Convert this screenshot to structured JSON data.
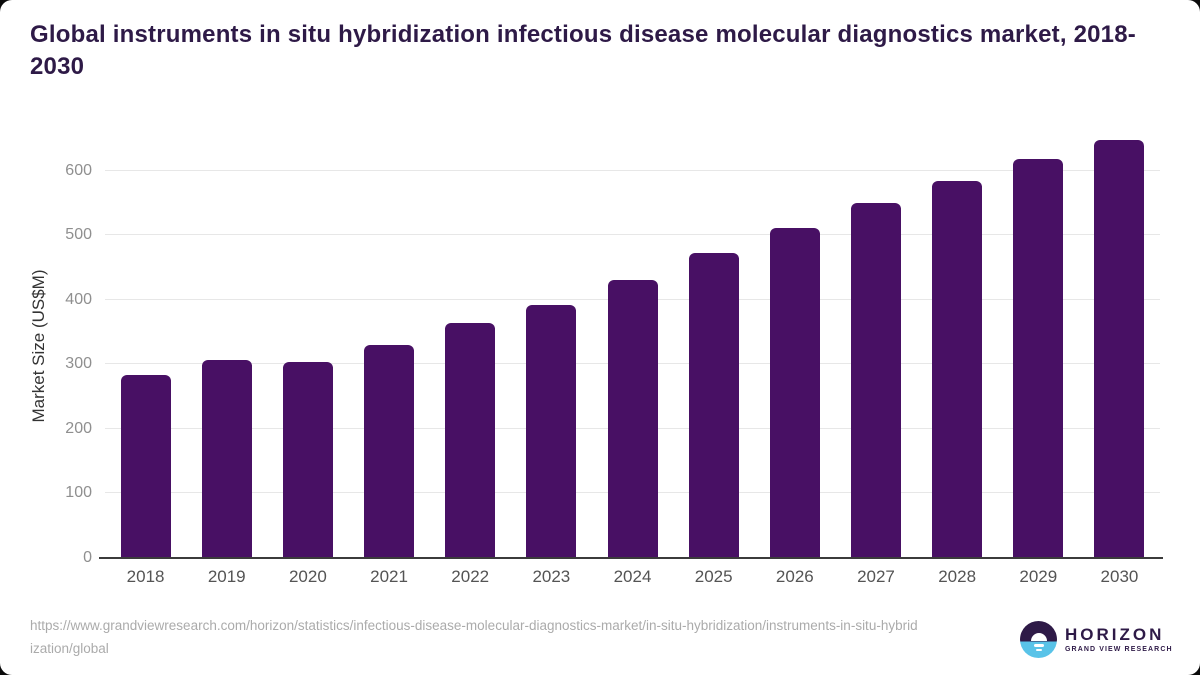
{
  "chart_data": {
    "type": "bar",
    "title": "Global instruments in situ hybridization infectious disease molecular diagnostics market, 2018-2030",
    "categories": [
      "2018",
      "2019",
      "2020",
      "2021",
      "2022",
      "2023",
      "2024",
      "2025",
      "2026",
      "2027",
      "2028",
      "2029",
      "2030"
    ],
    "values": [
      283,
      307,
      304,
      330,
      364,
      392,
      430,
      472,
      511,
      549,
      584,
      618,
      648
    ],
    "xlabel": "",
    "ylabel": "Market Size (US$M)",
    "yticks": [
      0,
      100,
      200,
      300,
      400,
      500,
      600
    ],
    "ylim": [
      0,
      655
    ],
    "grid": "horizontal gridlines on",
    "legend": "none",
    "bar_color": "#481064"
  },
  "footer": {
    "source_url": "https://www.grandviewresearch.com/horizon/statistics/infectious-disease-molecular-diagnostics-market/in-situ-hybridization/instruments-in-situ-hybridization/global",
    "logo": {
      "title": "HORIZON",
      "subtitle": "GRAND VIEW RESEARCH"
    }
  },
  "colors": {
    "title_text": "#2e1a47",
    "bar": "#481064",
    "axis_line": "#3b3b3b",
    "gridline": "#e7e7e7",
    "y_tick_label": "#8f8f8f",
    "x_tick_label": "#545454",
    "url_text": "#ababab",
    "logo_purple": "#2e1a47",
    "logo_blue": "#59c3e8"
  }
}
